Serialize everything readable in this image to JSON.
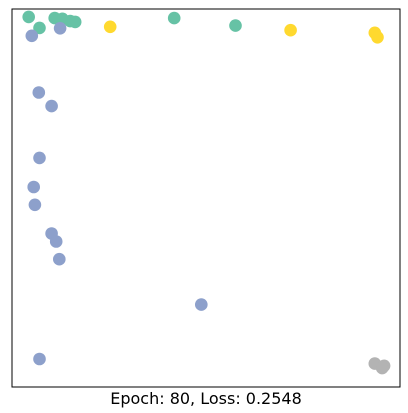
{
  "chart_data": {
    "type": "scatter",
    "title": "",
    "xlabel": "Epoch: 80, Loss: 0.2548",
    "ylabel": "",
    "grid": false,
    "legend": "none",
    "x_ticks": [],
    "y_ticks": [],
    "xlim": [
      0,
      1
    ],
    "ylim": [
      0,
      1
    ],
    "series": [
      {
        "color": "#66c2a5",
        "points": [
          {
            "x": 0.043,
            "y": 0.979
          },
          {
            "x": 0.071,
            "y": 0.95
          },
          {
            "x": 0.11,
            "y": 0.976
          },
          {
            "x": 0.13,
            "y": 0.974
          },
          {
            "x": 0.15,
            "y": 0.968
          },
          {
            "x": 0.163,
            "y": 0.966
          },
          {
            "x": 0.418,
            "y": 0.976
          },
          {
            "x": 0.576,
            "y": 0.956
          }
        ]
      },
      {
        "color": "#ffd92f",
        "points": [
          {
            "x": 0.253,
            "y": 0.953
          },
          {
            "x": 0.718,
            "y": 0.944
          },
          {
            "x": 0.935,
            "y": 0.937
          },
          {
            "x": 0.942,
            "y": 0.925
          }
        ]
      },
      {
        "color": "#8da0cb",
        "points": [
          {
            "x": 0.051,
            "y": 0.929
          },
          {
            "x": 0.124,
            "y": 0.949
          },
          {
            "x": 0.069,
            "y": 0.779
          },
          {
            "x": 0.102,
            "y": 0.743
          },
          {
            "x": 0.071,
            "y": 0.606
          },
          {
            "x": 0.056,
            "y": 0.529
          },
          {
            "x": 0.059,
            "y": 0.482
          },
          {
            "x": 0.102,
            "y": 0.406
          },
          {
            "x": 0.114,
            "y": 0.385
          },
          {
            "x": 0.122,
            "y": 0.338
          },
          {
            "x": 0.488,
            "y": 0.218
          },
          {
            "x": 0.071,
            "y": 0.074
          }
        ]
      },
      {
        "color": "#b3b3b3",
        "points": [
          {
            "x": 0.935,
            "y": 0.062
          },
          {
            "x": 0.959,
            "y": 0.056
          },
          {
            "x": 0.954,
            "y": 0.05
          }
        ]
      }
    ]
  }
}
